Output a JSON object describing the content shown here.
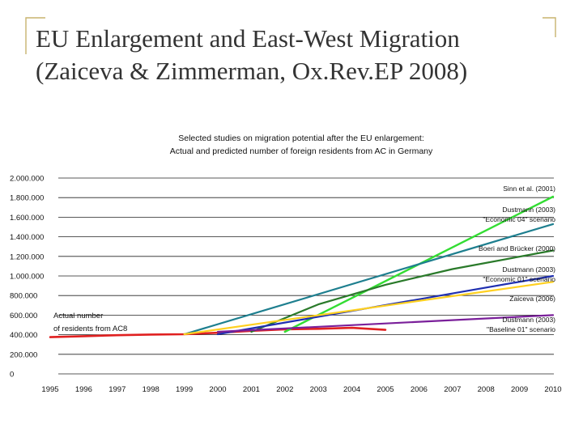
{
  "slide": {
    "title_line1": "EU Enlargement and East-West Migration",
    "title_line2": "(Zaiceva & Zimmerman, Ox.Rev.EP 2008)"
  },
  "colors": {
    "title": "#333333",
    "accent_corner": "#c8b46e",
    "grid": "#222222"
  },
  "chart_data": {
    "type": "line",
    "title_line1": "Selected studies on migration potential after the EU enlargement:",
    "title_line2": "Actual and predicted number of  foreign residents from AC in Germany",
    "xlabel": "",
    "ylabel": "",
    "x_ticks": [
      1995,
      1996,
      1997,
      1998,
      1999,
      2000,
      2001,
      2002,
      2003,
      2004,
      2005,
      2006,
      2007,
      2008,
      2009,
      2010
    ],
    "y_ticks": [
      {
        "value": 0,
        "label": "0"
      },
      {
        "value": 200000,
        "label": "200.000"
      },
      {
        "value": 400000,
        "label": "400.000"
      },
      {
        "value": 600000,
        "label": "600.000"
      },
      {
        "value": 800000,
        "label": "800.000"
      },
      {
        "value": 1000000,
        "label": "1.000.000"
      },
      {
        "value": 1200000,
        "label": "1.200.000"
      },
      {
        "value": 1400000,
        "label": "1.400.000"
      },
      {
        "value": 1600000,
        "label": "1.600.000"
      },
      {
        "value": 1800000,
        "label": "1.800.000"
      },
      {
        "value": 2000000,
        "label": "2.000.000"
      }
    ],
    "xlim": [
      1995,
      2010
    ],
    "ylim": [
      0,
      2000000
    ],
    "grid": true,
    "annotations": {
      "actual_line1": "Actual number",
      "actual_line2": "of residents from AC8"
    },
    "series": [
      {
        "name": "Actual",
        "label_lines": [],
        "color": "#e02020",
        "width": 2.6,
        "points": [
          [
            1995,
            375000
          ],
          [
            1996,
            385000
          ],
          [
            1997,
            395000
          ],
          [
            1998,
            402000
          ],
          [
            1999,
            405000
          ],
          [
            2000,
            420000
          ],
          [
            2001,
            440000
          ],
          [
            2002,
            455000
          ],
          [
            2003,
            460000
          ],
          [
            2004,
            470000
          ],
          [
            2004.5,
            460000
          ],
          [
            2005,
            450000
          ]
        ]
      },
      {
        "name": "Sinn et al. (2001)",
        "label_lines": [
          "Sinn et al. (2001)"
        ],
        "color": "#33dd33",
        "width": 2.4,
        "points": [
          [
            2002,
            430000
          ],
          [
            2010,
            1810000
          ]
        ]
      },
      {
        "name": "Dustmann (2003) \"Economic 04\" scenario",
        "label_lines": [
          "Dustmann (2003)",
          "\"Economic 04\" scenario"
        ],
        "color": "#1e7f8f",
        "width": 2.2,
        "points": [
          [
            1999,
            405000
          ],
          [
            2010,
            1530000
          ]
        ]
      },
      {
        "name": "Boeri and Brücker (2000)",
        "label_lines": [
          "Boeri and Brücker (2000)"
        ],
        "color": "#2a7a2a",
        "width": 2.2,
        "points": [
          [
            2001,
            430000
          ],
          [
            2003,
            710000
          ],
          [
            2005,
            910000
          ],
          [
            2007,
            1070000
          ],
          [
            2010,
            1260000
          ]
        ]
      },
      {
        "name": "Dustmann (2003) \"Economic 01\" scenario",
        "label_lines": [
          "Dustmann (2003)",
          "\"Economic 01\" scenario"
        ],
        "color": "#1f2fb0",
        "width": 2.2,
        "points": [
          [
            2000,
            405000
          ],
          [
            2010,
            1000000
          ]
        ]
      },
      {
        "name": "Zaiceva (2006)",
        "label_lines": [
          "Zaiceva (2006)"
        ],
        "color": "#ffd020",
        "width": 2.2,
        "points": [
          [
            1999,
            405000
          ],
          [
            2010,
            940000
          ]
        ]
      },
      {
        "name": "Dustmann (2003) \"Baseline 01\" scenario",
        "label_lines": [
          "Dustmann (2003)",
          "\"Baseline 01\" scenario"
        ],
        "color": "#7a1f9a",
        "width": 2.2,
        "points": [
          [
            2000,
            430000
          ],
          [
            2010,
            600000
          ]
        ]
      }
    ]
  }
}
